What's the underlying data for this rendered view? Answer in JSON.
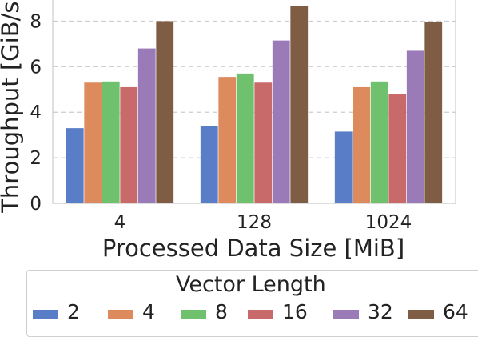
{
  "chart_data": {
    "type": "bar",
    "xlabel": "Processed Data Size [MiB]",
    "ylabel": "Throughput [GiB/s]",
    "categories": [
      "4",
      "128",
      "1024"
    ],
    "yticks": [
      0,
      2,
      4,
      6,
      8
    ],
    "ylim": [
      0,
      9.0
    ],
    "grid": "horizontal dashed",
    "legend_title": "Vector Length",
    "legend_placement": "bottom",
    "series": [
      {
        "name": "2",
        "color": "#5a7dc8",
        "values": [
          3.3,
          3.4,
          3.15
        ]
      },
      {
        "name": "4",
        "color": "#dd8b5c",
        "values": [
          5.3,
          5.55,
          5.1
        ]
      },
      {
        "name": "8",
        "color": "#70c16e",
        "values": [
          5.35,
          5.7,
          5.35
        ]
      },
      {
        "name": "16",
        "color": "#c96a6a",
        "values": [
          5.1,
          5.3,
          4.8
        ]
      },
      {
        "name": "32",
        "color": "#9a7bb8",
        "values": [
          6.8,
          7.15,
          6.7
        ]
      },
      {
        "name": "64",
        "color": "#7f5d44",
        "values": [
          8.0,
          8.65,
          7.95
        ]
      }
    ]
  }
}
